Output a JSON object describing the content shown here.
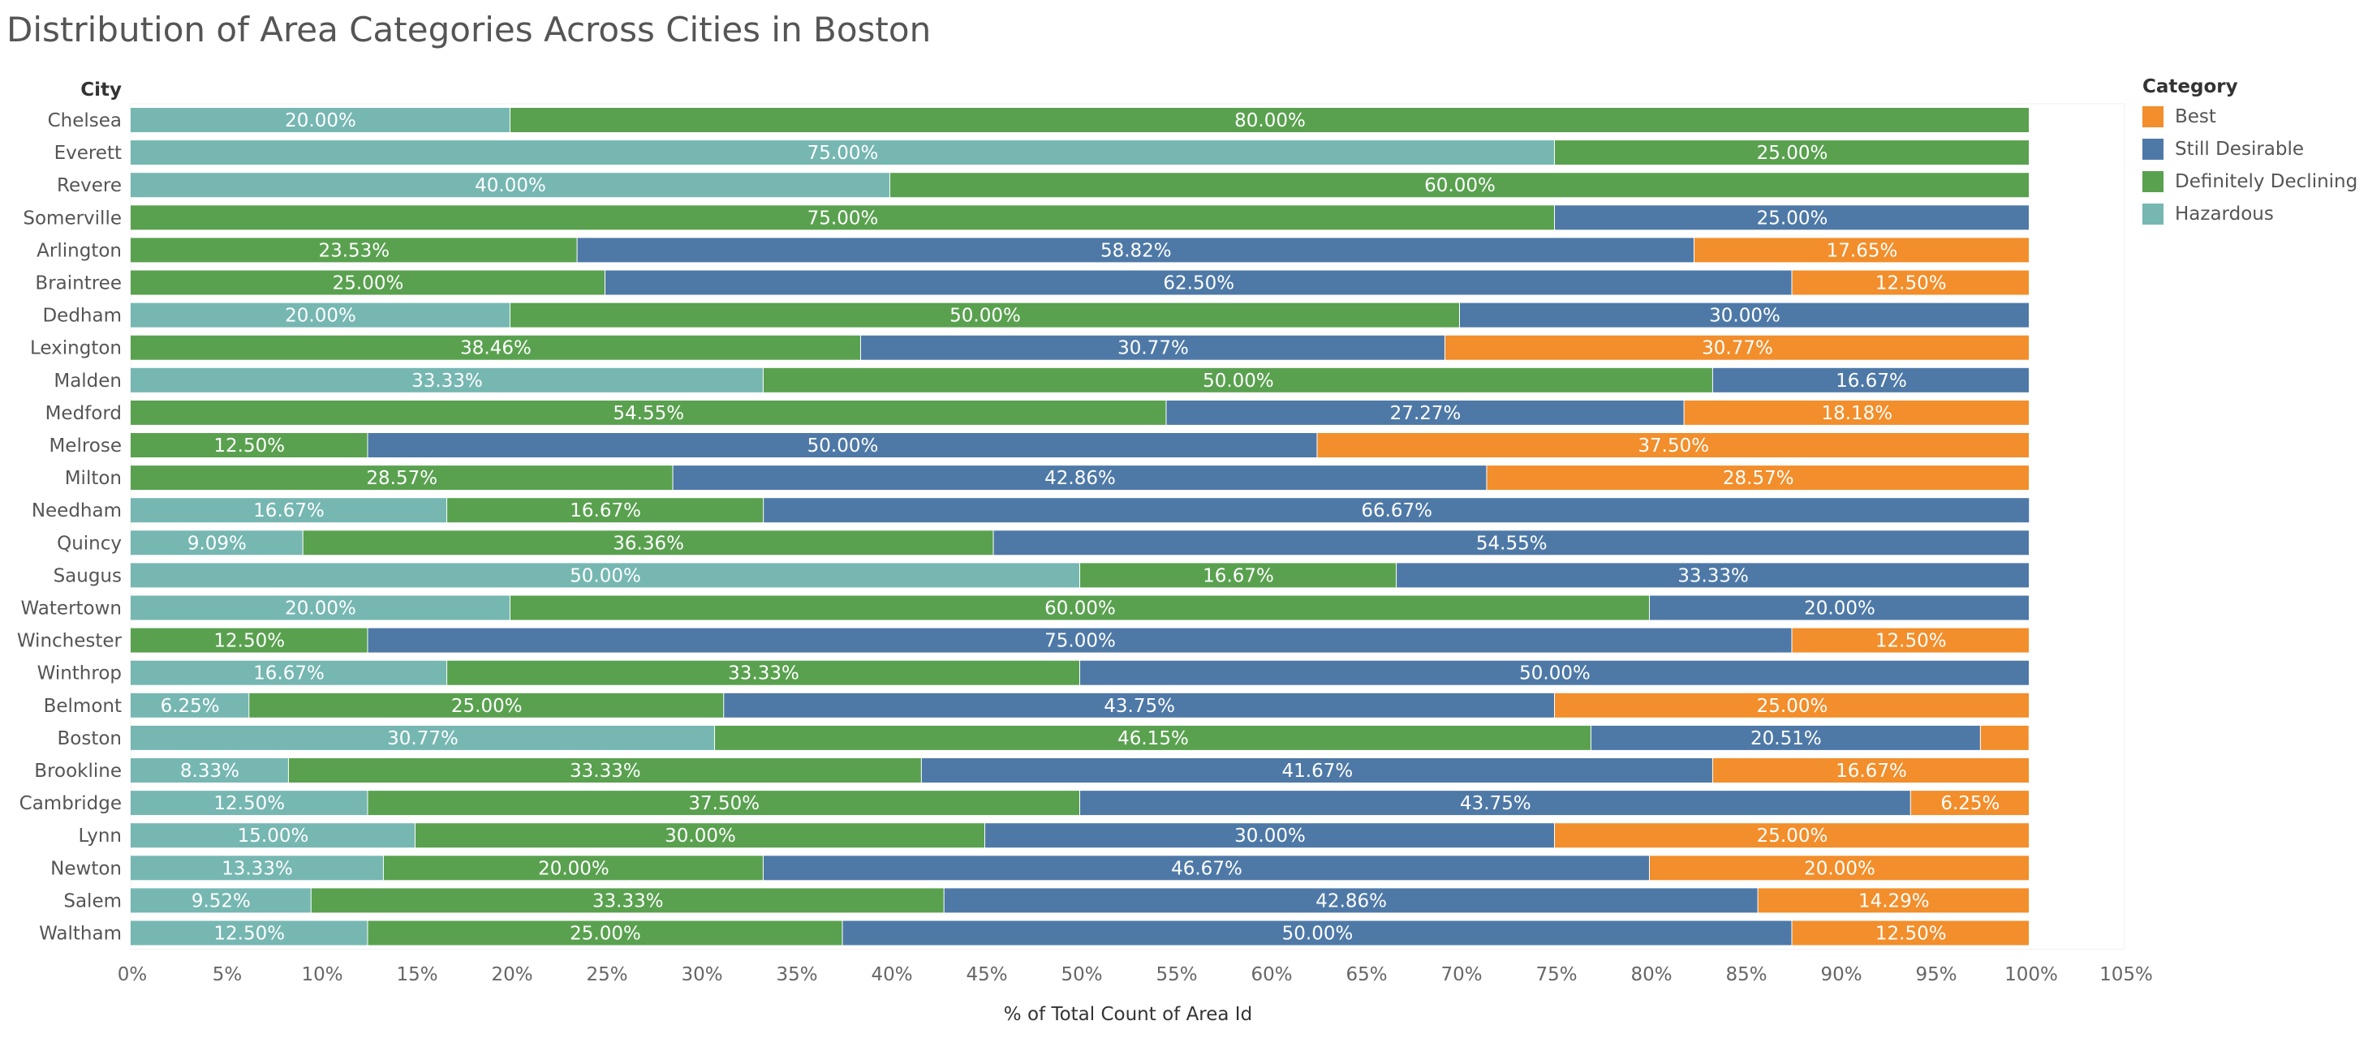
{
  "page": {
    "title": "Distribution of Area Categories Across Cities in Boston"
  },
  "colors": {
    "Best": "#F28E2B",
    "Still Desirable": "#4E79A7",
    "Definitely Declining": "#59A14F",
    "Hazardous": "#76B7B2"
  },
  "chart_data": {
    "type": "bar",
    "orientation": "horizontal",
    "stacked": true,
    "title": "Distribution of Area Categories Across Cities in Boston",
    "xlabel": "% of Total Count of Area Id",
    "ylabel": "City",
    "xlim": [
      0,
      105
    ],
    "x_ticks": [
      "0%",
      "5%",
      "10%",
      "15%",
      "20%",
      "25%",
      "30%",
      "35%",
      "40%",
      "45%",
      "50%",
      "55%",
      "60%",
      "65%",
      "70%",
      "75%",
      "80%",
      "85%",
      "90%",
      "95%",
      "100%",
      "105%"
    ],
    "legend": {
      "title": "Category",
      "position": "right",
      "items": [
        "Best",
        "Still Desirable",
        "Definitely Declining",
        "Hazardous"
      ]
    },
    "stack_order": [
      "Hazardous",
      "Definitely Declining",
      "Still Desirable",
      "Best"
    ],
    "categories": [
      "Chelsea",
      "Everett",
      "Revere",
      "Somerville",
      "Arlington",
      "Braintree",
      "Dedham",
      "Lexington",
      "Malden",
      "Medford",
      "Melrose",
      "Milton",
      "Needham",
      "Quincy",
      "Saugus",
      "Watertown",
      "Winchester",
      "Winthrop",
      "Belmont",
      "Boston",
      "Brookline",
      "Cambridge",
      "Lynn",
      "Newton",
      "Salem",
      "Waltham"
    ],
    "series": [
      {
        "name": "Hazardous",
        "values": [
          20.0,
          75.0,
          40.0,
          0,
          0,
          0,
          20.0,
          0,
          33.33,
          0,
          0,
          0,
          16.67,
          9.09,
          50.0,
          20.0,
          0,
          16.67,
          6.25,
          30.77,
          8.33,
          12.5,
          15.0,
          13.33,
          9.52,
          12.5
        ]
      },
      {
        "name": "Definitely Declining",
        "values": [
          80.0,
          25.0,
          60.0,
          75.0,
          23.53,
          25.0,
          50.0,
          38.46,
          50.0,
          54.55,
          12.5,
          28.57,
          16.67,
          36.36,
          16.67,
          60.0,
          12.5,
          33.33,
          25.0,
          46.15,
          33.33,
          37.5,
          30.0,
          20.0,
          33.33,
          25.0
        ]
      },
      {
        "name": "Still Desirable",
        "values": [
          0,
          0,
          0,
          25.0,
          58.82,
          62.5,
          30.0,
          30.77,
          16.67,
          27.27,
          50.0,
          42.86,
          66.67,
          54.55,
          33.33,
          20.0,
          75.0,
          50.0,
          43.75,
          20.51,
          41.67,
          43.75,
          30.0,
          46.67,
          42.86,
          50.0
        ]
      },
      {
        "name": "Best",
        "values": [
          0,
          0,
          0,
          0,
          17.65,
          12.5,
          0,
          30.77,
          0,
          18.18,
          37.5,
          28.57,
          0,
          0,
          0,
          0,
          12.5,
          0,
          25.0,
          2.56,
          16.67,
          6.25,
          25.0,
          20.0,
          14.29,
          12.5
        ]
      }
    ],
    "grid": false
  }
}
